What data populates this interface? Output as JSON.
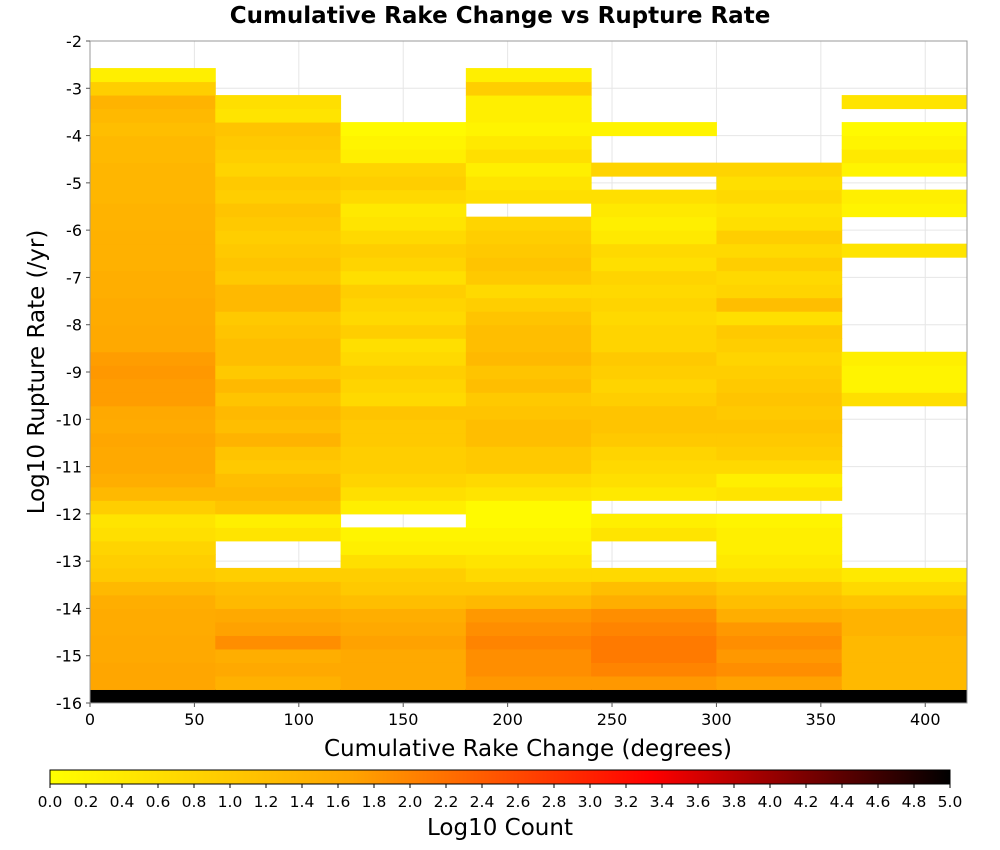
{
  "chart_data": {
    "type": "heatmap",
    "title": "Cumulative Rake Change vs Rupture Rate",
    "xlabel": "Cumulative Rake Change (degrees)",
    "ylabel": "Log10 Rupture Rate (/yr)",
    "xlim": [
      0,
      420
    ],
    "ylim": [
      -16,
      -2
    ],
    "xticks": [
      "0",
      "50",
      "100",
      "150",
      "200",
      "250",
      "300",
      "350",
      "400"
    ],
    "yticks": [
      "-2",
      "-3",
      "-4",
      "-5",
      "-6",
      "-7",
      "-8",
      "-9",
      "-10",
      "-11",
      "-12",
      "-13",
      "-14",
      "-15",
      "-16"
    ],
    "grid": true,
    "x_bin_width": 60,
    "y_bin_height": 0.2857,
    "y_bin_start": -16,
    "colorbar": {
      "label": "Log10 Count",
      "min": 0,
      "max": 5,
      "ticks": [
        "0.0",
        "0.2",
        "0.4",
        "0.6",
        "0.8",
        "1.0",
        "1.2",
        "1.4",
        "1.6",
        "1.8",
        "2.0",
        "2.2",
        "2.4",
        "2.6",
        "2.8",
        "3.0",
        "3.2",
        "3.4",
        "3.6",
        "3.8",
        "4.0",
        "4.2",
        "4.4",
        "4.6",
        "4.8",
        "5.0"
      ],
      "colors": [
        "#ffff00",
        "#ffa500",
        "#ff0000",
        "#000000"
      ]
    },
    "columns": [
      {
        "x_start": 0,
        "values": [
          5.0,
          1.65,
          1.65,
          1.6,
          1.6,
          1.55,
          1.55,
          1.5,
          1.3,
          1.0,
          0.9,
          0.8,
          0.6,
          0.5,
          0.9,
          1.3,
          1.5,
          1.6,
          1.6,
          1.65,
          1.55,
          1.6,
          1.75,
          1.75,
          1.8,
          1.75,
          1.6,
          1.6,
          1.55,
          1.55,
          1.5,
          1.5,
          1.45,
          1.45,
          1.45,
          1.4,
          1.4,
          1.35,
          1.35,
          1.35,
          1.3,
          1.3,
          1.2,
          1.3,
          1.4,
          0.9,
          0.3
        ]
      },
      {
        "x_start": 60,
        "values": [
          5.0,
          1.45,
          1.6,
          1.5,
          1.9,
          1.7,
          1.6,
          1.3,
          1.2,
          0.9,
          null,
          null,
          0.5,
          0.3,
          1.1,
          1.3,
          1.2,
          1.0,
          1.1,
          1.4,
          1.2,
          1.3,
          1.1,
          1.3,
          1.0,
          1.2,
          1.2,
          1.1,
          1.0,
          1.3,
          1.3,
          1.0,
          1.1,
          1.0,
          0.9,
          1.0,
          1.1,
          0.9,
          1.0,
          0.8,
          0.9,
          1.0,
          1.1,
          0.5,
          0.6
        ]
      },
      {
        "x_start": 120,
        "values": [
          5.0,
          1.6,
          1.6,
          1.6,
          1.7,
          1.6,
          1.5,
          1.2,
          1.0,
          0.9,
          0.6,
          0.3,
          0.2,
          null,
          0.3,
          0.6,
          0.8,
          0.9,
          0.9,
          1.0,
          1.0,
          1.1,
          0.7,
          0.8,
          0.9,
          0.7,
          0.6,
          0.9,
          0.7,
          0.8,
          0.9,
          0.6,
          0.8,
          0.9,
          0.7,
          0.5,
          0.4,
          0.7,
          0.9,
          0.8,
          0.3,
          0.2,
          0.1
        ]
      },
      {
        "x_start": 180,
        "values": [
          5.0,
          1.8,
          1.9,
          1.9,
          2.0,
          1.9,
          1.8,
          1.3,
          1.0,
          0.7,
          0.5,
          0.3,
          0.2,
          0.1,
          0.1,
          0.5,
          0.7,
          1.0,
          1.0,
          1.2,
          1.2,
          1.1,
          1.0,
          1.2,
          1.1,
          1.3,
          1.2,
          1.2,
          1.1,
          0.9,
          0.7,
          1.0,
          1.1,
          1.0,
          0.9,
          0.8,
          null,
          0.6,
          0.5,
          0.3,
          0.6,
          0.4,
          0.2,
          0.3,
          0.3,
          0.9,
          0.3
        ]
      },
      {
        "x_start": 240,
        "values": [
          5.0,
          1.8,
          2.0,
          2.1,
          2.1,
          2.0,
          1.9,
          1.5,
          1.2,
          0.7,
          null,
          null,
          0.5,
          0.3,
          null,
          0.4,
          0.6,
          0.7,
          0.8,
          1.0,
          1.1,
          1.1,
          0.9,
          0.8,
          0.9,
          1.0,
          0.8,
          0.8,
          0.7,
          0.8,
          0.7,
          0.8,
          0.6,
          0.7,
          0.4,
          0.3,
          0.4,
          0.6,
          null,
          0.8,
          null,
          null,
          0.2
        ]
      },
      {
        "x_start": 300,
        "values": [
          5.0,
          1.7,
          1.9,
          1.8,
          1.9,
          1.8,
          1.5,
          1.2,
          1.0,
          0.6,
          0.4,
          0.3,
          0.3,
          0.2,
          null,
          0.5,
          0.3,
          0.7,
          0.9,
          1.0,
          1.1,
          1.0,
          1.1,
          1.0,
          0.9,
          0.8,
          0.9,
          1.0,
          0.6,
          1.2,
          0.8,
          0.7,
          0.9,
          0.7,
          0.9,
          0.6,
          0.5,
          0.7,
          0.6,
          0.8
        ]
      },
      {
        "x_start": 360,
        "values": [
          5.0,
          1.3,
          1.3,
          1.3,
          1.3,
          1.4,
          1.4,
          1.1,
          0.7,
          0.4,
          null,
          null,
          null,
          null,
          null,
          null,
          null,
          null,
          null,
          null,
          null,
          null,
          0.6,
          0.2,
          0.2,
          0.3,
          null,
          null,
          null,
          null,
          null,
          null,
          null,
          0.5,
          null,
          null,
          0.2,
          0.3,
          null,
          0.2,
          0.4,
          0.2,
          0.1,
          null,
          0.5
        ]
      }
    ]
  }
}
